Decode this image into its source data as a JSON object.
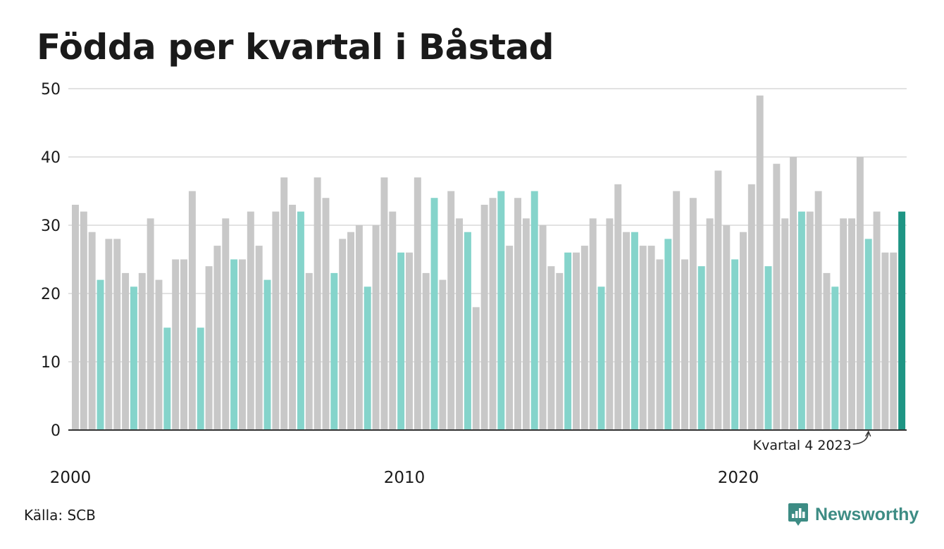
{
  "colors": {
    "grey": "#c8c8c8",
    "q4": "#85d4cb",
    "latest": "#1e9584",
    "grid": "#e2e2e2",
    "brand": "#3d8c84"
  },
  "chart_data": {
    "type": "bar",
    "title": "Födda per kvartal i Båstad",
    "ylim": [
      0,
      50
    ],
    "yticks": [
      0,
      10,
      20,
      30,
      40,
      50
    ],
    "xtick_labels": [
      {
        "label": "2000",
        "index": 0
      },
      {
        "label": "2010",
        "index": 40
      },
      {
        "label": "2020",
        "index": 80
      }
    ],
    "grid": true,
    "highlight": "fourth quarter of each year",
    "start_year": 2000,
    "quarters_per_year": 4,
    "values": [
      33,
      32,
      29,
      22,
      28,
      28,
      23,
      21,
      23,
      31,
      22,
      15,
      25,
      25,
      35,
      15,
      24,
      27,
      31,
      25,
      25,
      32,
      27,
      22,
      32,
      37,
      33,
      32,
      23,
      37,
      34,
      23,
      28,
      29,
      30,
      21,
      30,
      37,
      32,
      26,
      26,
      37,
      23,
      34,
      22,
      35,
      31,
      29,
      18,
      33,
      34,
      35,
      27,
      34,
      31,
      35,
      30,
      24,
      23,
      26,
      26,
      27,
      31,
      21,
      31,
      36,
      29,
      29,
      27,
      27,
      25,
      28,
      35,
      25,
      34,
      24,
      31,
      38,
      30,
      25,
      29,
      36,
      49,
      24,
      39,
      31,
      40,
      32,
      32,
      35,
      23,
      21,
      31,
      31,
      40,
      28,
      32,
      26,
      26,
      32
    ],
    "annotation": {
      "text": "Kvartal 4 2023",
      "index": 95
    }
  },
  "footer": {
    "source": "Källa: SCB",
    "brand": "Newsworthy",
    "brand_icon": "newsworthy-logo-icon"
  }
}
